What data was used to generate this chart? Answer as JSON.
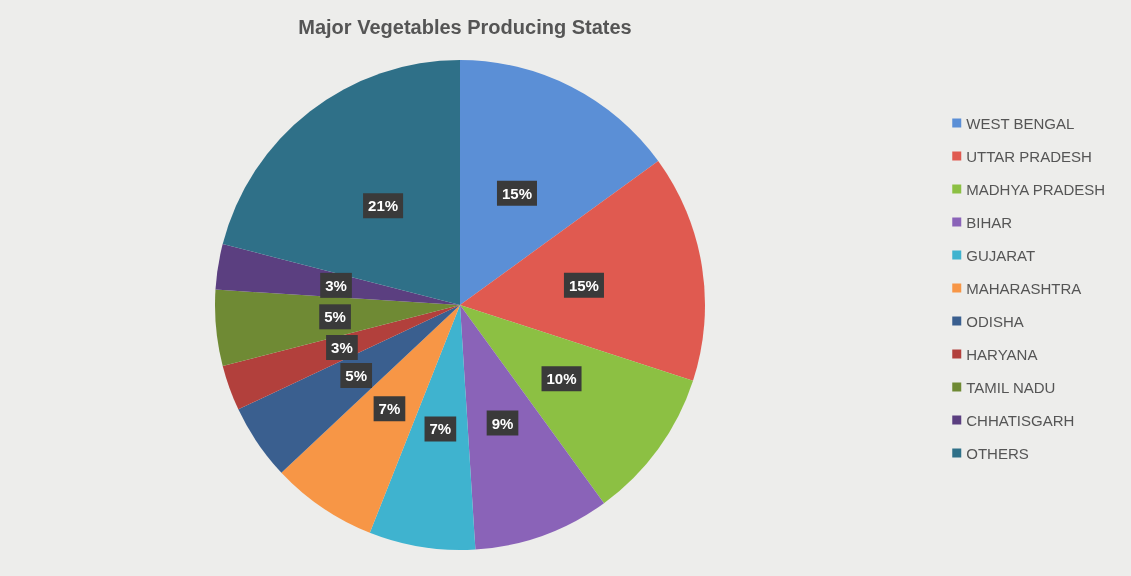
{
  "chart_data": {
    "type": "pie",
    "title": "Major Vegetables Producing States",
    "categories": [
      "WEST BENGAL",
      "UTTAR PRADESH",
      "MADHYA PRADESH",
      "BIHAR",
      "GUJARAT",
      "MAHARASHTRA",
      "ODISHA",
      "HARYANA",
      "TAMIL NADU",
      "CHHATISGARH",
      "OTHERS"
    ],
    "values": [
      15,
      15,
      10,
      9,
      7,
      7,
      5,
      3,
      5,
      3,
      21
    ],
    "value_labels": [
      "15%",
      "15%",
      "10%",
      "9%",
      "7%",
      "7%",
      "5%",
      "3%",
      "5%",
      "3%",
      "21%"
    ],
    "colors": [
      "#5b8fd6",
      "#e05a50",
      "#8cc043",
      "#8a63b8",
      "#3fb3cf",
      "#f79646",
      "#3a5f8f",
      "#b2403c",
      "#6f8a34",
      "#5b3f80",
      "#2f7088"
    ],
    "legend": "right"
  }
}
